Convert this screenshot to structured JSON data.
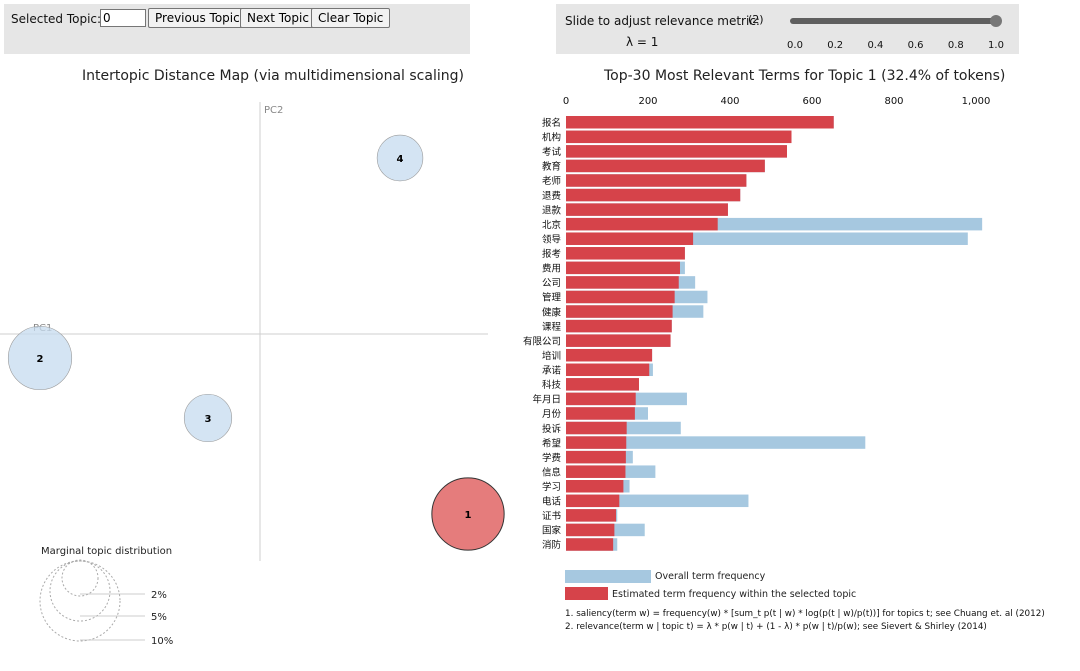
{
  "controls": {
    "selected_topic_label": "Selected Topic:",
    "selected_topic_value": "0",
    "prev_label": "Previous Topic",
    "next_label": "Next Topic",
    "clear_label": "Clear Topic",
    "slider_label": "Slide to adjust relevance metric:",
    "slider_note": "(2)",
    "lambda_text": "λ = 1",
    "lambda_value": 1,
    "slider_ticks": [
      "0.0",
      "0.2",
      "0.4",
      "0.6",
      "0.8",
      "1.0"
    ]
  },
  "colors": {
    "topic_selected": "#d9413f",
    "topic_default": "#c6dbef",
    "bar_overall": "#a6c8e0",
    "bar_estimated": "#d6434a",
    "panel_bg": "#e6e6e6"
  },
  "chart_data": [
    {
      "type": "scatter",
      "title": "Intertopic Distance Map (via multidimensional scaling)",
      "xlabel": "PC1",
      "ylabel": "PC2",
      "topics": [
        {
          "id": "1",
          "x": 0.52,
          "y": -0.45,
          "share": 32.4,
          "selected": true
        },
        {
          "id": "2",
          "x": -0.55,
          "y": -0.06,
          "share": 25.0,
          "selected": false
        },
        {
          "id": "3",
          "x": -0.13,
          "y": -0.21,
          "share": 14.0,
          "selected": false
        },
        {
          "id": "4",
          "x": 0.35,
          "y": 0.44,
          "share": 13.0,
          "selected": false
        }
      ],
      "marginal": {
        "title": "Marginal topic distribution",
        "levels": [
          "2%",
          "5%",
          "10%"
        ]
      }
    },
    {
      "type": "bar",
      "orientation": "horizontal",
      "title": "Top-30 Most Relevant Terms for Topic 1 (32.4% of tokens)",
      "xlim": [
        0,
        1000
      ],
      "xticks": [
        "0",
        "200",
        "400",
        "600",
        "800",
        "1,000"
      ],
      "categories": [
        "报名",
        "机构",
        "考试",
        "教育",
        "老师",
        "退费",
        "退款",
        "北京",
        "领导",
        "报考",
        "费用",
        "公司",
        "管理",
        "健康",
        "课程",
        "有限公司",
        "培训",
        "承诺",
        "科技",
        "年月日",
        "月份",
        "投诉",
        "希望",
        "学费",
        "信息",
        "学习",
        "电话",
        "证书",
        "国家",
        "消防"
      ],
      "series": [
        {
          "name": "Overall term frequency",
          "values": [
            653,
            550,
            539,
            485,
            440,
            425,
            395,
            1015,
            980,
            290,
            290,
            315,
            345,
            335,
            258,
            255,
            210,
            212,
            178,
            295,
            200,
            280,
            730,
            163,
            218,
            155,
            445,
            125,
            192,
            125
          ]
        },
        {
          "name": "Estimated term frequency within the selected topic",
          "values": [
            653,
            550,
            539,
            485,
            440,
            425,
            395,
            370,
            310,
            290,
            278,
            275,
            265,
            260,
            258,
            255,
            210,
            203,
            178,
            170,
            168,
            148,
            147,
            146,
            145,
            140,
            130,
            122,
            118,
            115
          ]
        }
      ],
      "notes": [
        "1. saliency(term w) = frequency(w) * [sum_t p(t | w) * log(p(t | w)/p(t))] for topics t; see Chuang et. al (2012)",
        "2. relevance(term w | topic t) = λ * p(w | t) + (1 - λ) * p(w | t)/p(w); see Sievert & Shirley (2014)"
      ]
    }
  ]
}
